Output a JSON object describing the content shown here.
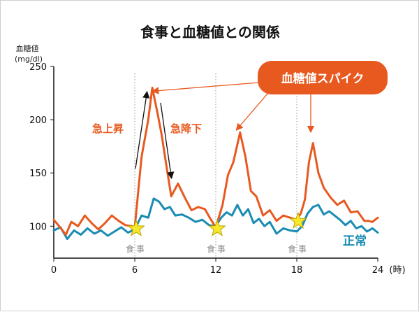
{
  "chart_data": {
    "type": "line",
    "title": "食事と血糖値との関係",
    "ylabel": "血糖値",
    "yunit": "(mg/dl)",
    "xunit": "(時)",
    "xlim": [
      0,
      24
    ],
    "ylim": [
      70,
      250
    ],
    "xticks": [
      0,
      6,
      12,
      18,
      24
    ],
    "yticks": [
      100,
      150,
      200,
      250
    ],
    "grid": false,
    "meal_label": "食事",
    "meals": [
      6,
      12,
      18
    ],
    "series": [
      {
        "name": "血糖値スパイク",
        "color": "#e8591f",
        "x": [
          0,
          0.4,
          0.9,
          1.3,
          1.8,
          2.3,
          2.8,
          3.3,
          3.8,
          4.3,
          4.8,
          5.3,
          5.8,
          6.0,
          6.5,
          7.0,
          7.3,
          7.7,
          8.0,
          8.3,
          8.7,
          9.2,
          9.7,
          10.2,
          10.7,
          11.2,
          11.6,
          12.0,
          12.5,
          12.9,
          13.3,
          13.8,
          14.2,
          14.6,
          15.0,
          15.5,
          16.0,
          16.5,
          17.0,
          17.5,
          18.0,
          18.3,
          18.6,
          18.9,
          19.2,
          19.6,
          20.0,
          20.5,
          21.0,
          21.5,
          22.0,
          22.5,
          23.0,
          23.3,
          23.6,
          24.0
        ],
        "y": [
          106,
          100,
          92,
          104,
          100,
          110,
          103,
          97,
          103,
          110,
          105,
          101,
          100,
          99,
          165,
          200,
          230,
          205,
          185,
          160,
          128,
          140,
          127,
          115,
          118,
          116,
          107,
          99,
          120,
          148,
          160,
          188,
          165,
          133,
          128,
          110,
          115,
          105,
          110,
          108,
          106,
          112,
          125,
          160,
          178,
          150,
          136,
          127,
          120,
          124,
          113,
          114,
          105,
          105,
          104,
          108
        ]
      },
      {
        "name": "正常",
        "color": "#1a8cb3",
        "x": [
          0,
          0.5,
          1.0,
          1.5,
          2.0,
          2.5,
          3.0,
          3.5,
          4.0,
          4.5,
          5.0,
          5.5,
          6.0,
          6.5,
          7.0,
          7.4,
          7.8,
          8.2,
          8.6,
          9.0,
          9.5,
          10.0,
          10.5,
          11.0,
          11.5,
          12.0,
          12.4,
          12.8,
          13.2,
          13.6,
          14.0,
          14.4,
          14.8,
          15.2,
          15.6,
          16.0,
          16.5,
          17.0,
          17.5,
          18.0,
          18.4,
          18.8,
          19.2,
          19.6,
          20.0,
          20.4,
          20.8,
          21.2,
          21.6,
          22.0,
          22.4,
          22.8,
          23.2,
          23.6,
          24.0
        ],
        "y": [
          96,
          99,
          88,
          96,
          92,
          98,
          93,
          96,
          91,
          95,
          99,
          94,
          97,
          110,
          108,
          126,
          123,
          116,
          118,
          110,
          111,
          108,
          104,
          106,
          101,
          100,
          108,
          113,
          110,
          120,
          110,
          116,
          103,
          107,
          100,
          104,
          93,
          98,
          96,
          95,
          100,
          112,
          118,
          120,
          111,
          114,
          110,
          106,
          101,
          105,
          98,
          100,
          95,
          98,
          94
        ]
      }
    ],
    "annotations": {
      "rise": "急上昇",
      "fall": "急降下",
      "spike_label": "血糖値スパイク",
      "normal_label": "正常"
    }
  }
}
